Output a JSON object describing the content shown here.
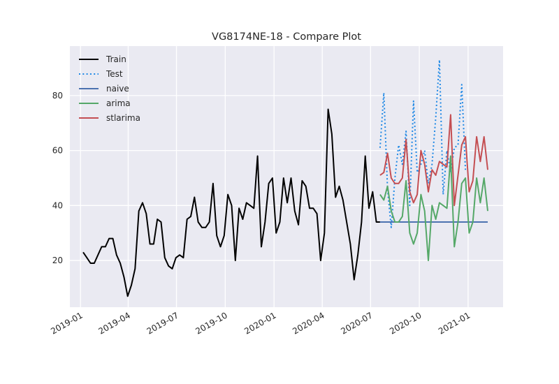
{
  "chart_data": {
    "type": "line",
    "title": "VG8174NE-18 - Compare Plot",
    "xlabel": "",
    "ylabel": "",
    "x_range": [
      "2018-12-12",
      "2021-03-08"
    ],
    "y_range": [
      3,
      98
    ],
    "x_ticks": [
      "2019-01",
      "2019-04",
      "2019-07",
      "2019-10",
      "2020-01",
      "2020-04",
      "2020-07",
      "2020-10",
      "2021-01"
    ],
    "x_tick_dates": [
      "2019-01-01",
      "2019-04-01",
      "2019-07-01",
      "2019-10-01",
      "2020-01-01",
      "2020-04-01",
      "2020-07-01",
      "2020-10-01",
      "2021-01-01"
    ],
    "y_ticks": [
      20,
      40,
      60,
      80
    ],
    "grid": true,
    "legend_position": "top-left",
    "background": "#eaeaf2",
    "series": [
      {
        "name": "Train",
        "color": "#000000",
        "style": "solid",
        "x": [
          "2019-01-06",
          "2019-01-13",
          "2019-01-20",
          "2019-01-27",
          "2019-02-03",
          "2019-02-10",
          "2019-02-17",
          "2019-02-24",
          "2019-03-03",
          "2019-03-10",
          "2019-03-17",
          "2019-03-24",
          "2019-03-31",
          "2019-04-07",
          "2019-04-14",
          "2019-04-21",
          "2019-04-28",
          "2019-05-05",
          "2019-05-12",
          "2019-05-19",
          "2019-05-26",
          "2019-06-02",
          "2019-06-09",
          "2019-06-16",
          "2019-06-23",
          "2019-06-30",
          "2019-07-07",
          "2019-07-14",
          "2019-07-21",
          "2019-07-28",
          "2019-08-04",
          "2019-08-11",
          "2019-08-18",
          "2019-08-25",
          "2019-09-01",
          "2019-09-08",
          "2019-09-15",
          "2019-09-22",
          "2019-09-29",
          "2019-10-06",
          "2019-10-13",
          "2019-10-20",
          "2019-10-27",
          "2019-11-03",
          "2019-11-10",
          "2019-11-17",
          "2019-11-24",
          "2019-12-01",
          "2019-12-08",
          "2019-12-15",
          "2019-12-22",
          "2019-12-29",
          "2020-01-05",
          "2020-01-12",
          "2020-01-19",
          "2020-01-26",
          "2020-02-02",
          "2020-02-09",
          "2020-02-16",
          "2020-02-23",
          "2020-03-01",
          "2020-03-08",
          "2020-03-15",
          "2020-03-22",
          "2020-03-29",
          "2020-04-05",
          "2020-04-12",
          "2020-04-19",
          "2020-04-26",
          "2020-05-03",
          "2020-05-10",
          "2020-05-17",
          "2020-05-24",
          "2020-05-31",
          "2020-06-07",
          "2020-06-14",
          "2020-06-21",
          "2020-06-28",
          "2020-07-05",
          "2020-07-12",
          "2020-07-19"
        ],
        "y": [
          23,
          21,
          19,
          19,
          22,
          25,
          25,
          28,
          28,
          22,
          19,
          14,
          7,
          11,
          17,
          38,
          41,
          37,
          26,
          26,
          35,
          34,
          21,
          18,
          17,
          21,
          22,
          21,
          35,
          36,
          43,
          34,
          32,
          32,
          34,
          48,
          29,
          25,
          29,
          44,
          40,
          20,
          39,
          35,
          41,
          40,
          39,
          58,
          25,
          34,
          48,
          50,
          30,
          34,
          50,
          41,
          50,
          38,
          33,
          49,
          47,
          39,
          39,
          37,
          20,
          30,
          75,
          66,
          43,
          47,
          42,
          34,
          26,
          13,
          22,
          34,
          58,
          39,
          45,
          34,
          34
        ]
      },
      {
        "name": "Test",
        "color": "#1e88e5",
        "style": "dotted",
        "x": [
          "2020-07-19",
          "2020-07-26",
          "2020-08-02",
          "2020-08-09",
          "2020-08-16",
          "2020-08-23",
          "2020-08-30",
          "2020-09-06",
          "2020-09-13",
          "2020-09-20",
          "2020-09-27",
          "2020-10-04",
          "2020-10-11",
          "2020-10-18",
          "2020-10-25",
          "2020-11-01",
          "2020-11-08",
          "2020-11-15",
          "2020-11-22",
          "2020-11-29",
          "2020-12-06",
          "2020-12-13",
          "2020-12-20",
          "2020-12-27"
        ],
        "y": [
          61,
          81,
          46,
          32,
          50,
          62,
          55,
          67,
          40,
          78,
          52,
          55,
          60,
          48,
          55,
          72,
          93,
          44,
          60,
          52,
          61,
          62,
          84,
          53
        ]
      },
      {
        "name": "naive",
        "color": "#4c72b0",
        "style": "solid",
        "x": [
          "2020-07-19",
          "2021-02-07"
        ],
        "y": [
          34,
          34
        ]
      },
      {
        "name": "arima",
        "color": "#55a868",
        "style": "solid",
        "x": [
          "2020-07-19",
          "2020-07-26",
          "2020-08-02",
          "2020-08-09",
          "2020-08-16",
          "2020-08-23",
          "2020-08-30",
          "2020-09-06",
          "2020-09-13",
          "2020-09-20",
          "2020-09-27",
          "2020-10-04",
          "2020-10-11",
          "2020-10-18",
          "2020-10-25",
          "2020-11-01",
          "2020-11-08",
          "2020-11-15",
          "2020-11-22",
          "2020-11-29",
          "2020-12-06",
          "2020-12-13",
          "2020-12-20",
          "2020-12-27",
          "2021-01-03",
          "2021-01-10",
          "2021-01-17",
          "2021-01-24",
          "2021-01-31",
          "2021-02-07"
        ],
        "y": [
          44,
          42,
          47,
          38,
          34,
          34,
          36,
          49,
          30,
          26,
          30,
          44,
          38,
          20,
          40,
          35,
          41,
          40,
          39,
          58,
          25,
          34,
          48,
          50,
          30,
          34,
          50,
          41,
          50,
          38
        ]
      },
      {
        "name": "stlarima",
        "color": "#c44e52",
        "style": "solid",
        "x": [
          "2020-07-19",
          "2020-07-26",
          "2020-08-02",
          "2020-08-09",
          "2020-08-16",
          "2020-08-23",
          "2020-08-30",
          "2020-09-06",
          "2020-09-13",
          "2020-09-20",
          "2020-09-27",
          "2020-10-04",
          "2020-10-11",
          "2020-10-18",
          "2020-10-25",
          "2020-11-01",
          "2020-11-08",
          "2020-11-15",
          "2020-11-22",
          "2020-11-29",
          "2020-12-06",
          "2020-12-13",
          "2020-12-20",
          "2020-12-27",
          "2021-01-03",
          "2021-01-10",
          "2021-01-17",
          "2021-01-24",
          "2021-01-31",
          "2021-02-07"
        ],
        "y": [
          51,
          52,
          59,
          50,
          48,
          48,
          50,
          64,
          45,
          41,
          44,
          60,
          55,
          45,
          53,
          51,
          56,
          55,
          54,
          73,
          40,
          51,
          62,
          65,
          45,
          49,
          65,
          56,
          65,
          53
        ]
      }
    ]
  }
}
